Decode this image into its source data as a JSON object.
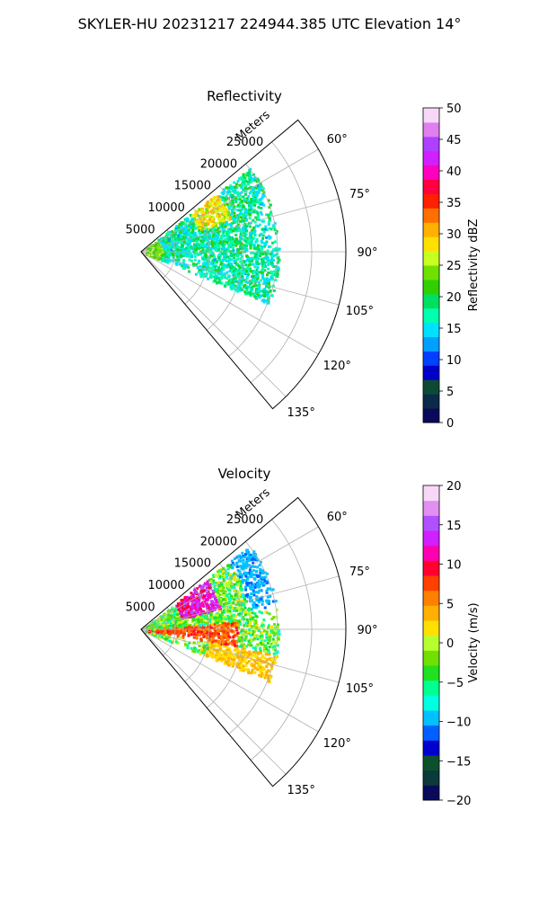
{
  "figure_title": "SKYLER-HU  20231217  224944.385 UTC Elevation 14°",
  "chart_data": [
    {
      "type": "polar-sector",
      "title": "Reflectivity",
      "radial_label": "Meters",
      "radial_ticks": [
        5000,
        10000,
        15000,
        20000,
        25000
      ],
      "radial_tick_labels": [
        "5000",
        "10000",
        "15000",
        "20000",
        "25000"
      ],
      "radial_max": 30000,
      "azimuth_range_deg": [
        50,
        140
      ],
      "azimuth_ticks": [
        60,
        75,
        90,
        105,
        120,
        135
      ],
      "azimuth_tick_labels": [
        "60°",
        "75°",
        "90°",
        "105°",
        "120°",
        "135°"
      ],
      "grid": true,
      "colorbar": {
        "label": "Reflectivity dBZ",
        "range": [
          0,
          50
        ],
        "ticks": [
          0,
          5,
          10,
          15,
          20,
          25,
          30,
          35,
          40,
          45,
          50
        ],
        "tick_labels": [
          "0",
          "5",
          "10",
          "15",
          "20",
          "25",
          "30",
          "35",
          "40",
          "45",
          "50"
        ],
        "colors": [
          "#0a0a5a",
          "#0b2a4a",
          "#0d4a36",
          "#0000c8",
          "#0040ff",
          "#00a0ff",
          "#00e0ff",
          "#00ffb0",
          "#00e060",
          "#30d000",
          "#70e000",
          "#c8ff20",
          "#ffe000",
          "#ffb000",
          "#ff7000",
          "#ff2000",
          "#ff0040",
          "#ff00c0",
          "#d020ff",
          "#b040ff",
          "#e080f0",
          "#f8d8f8"
        ]
      }
    },
    {
      "type": "polar-sector",
      "title": "Velocity",
      "radial_label": "Meters",
      "radial_ticks": [
        5000,
        10000,
        15000,
        20000,
        25000
      ],
      "radial_tick_labels": [
        "5000",
        "10000",
        "15000",
        "20000",
        "25000"
      ],
      "radial_max": 30000,
      "azimuth_range_deg": [
        50,
        140
      ],
      "azimuth_ticks": [
        60,
        75,
        90,
        105,
        120,
        135
      ],
      "azimuth_tick_labels": [
        "60°",
        "75°",
        "90°",
        "105°",
        "120°",
        "135°"
      ],
      "grid": true,
      "colorbar": {
        "label": "Velocity (m/s)",
        "range": [
          -20,
          20
        ],
        "ticks": [
          -20,
          -15,
          -10,
          -5,
          0,
          5,
          10,
          15,
          20
        ],
        "tick_labels": [
          "−20",
          "−15",
          "−10",
          "−5",
          "0",
          "5",
          "10",
          "15",
          "20"
        ],
        "colors": [
          "#0a0a5a",
          "#0b3a3a",
          "#0d5030",
          "#0000d0",
          "#0060ff",
          "#00c0ff",
          "#00ffe0",
          "#00ff90",
          "#20e020",
          "#70e000",
          "#b8ff30",
          "#ffe000",
          "#ffb000",
          "#ff8000",
          "#ff4000",
          "#ff0030",
          "#ff00b0",
          "#d020ff",
          "#b050ff",
          "#e090f0",
          "#f8d8f8"
        ]
      }
    }
  ]
}
